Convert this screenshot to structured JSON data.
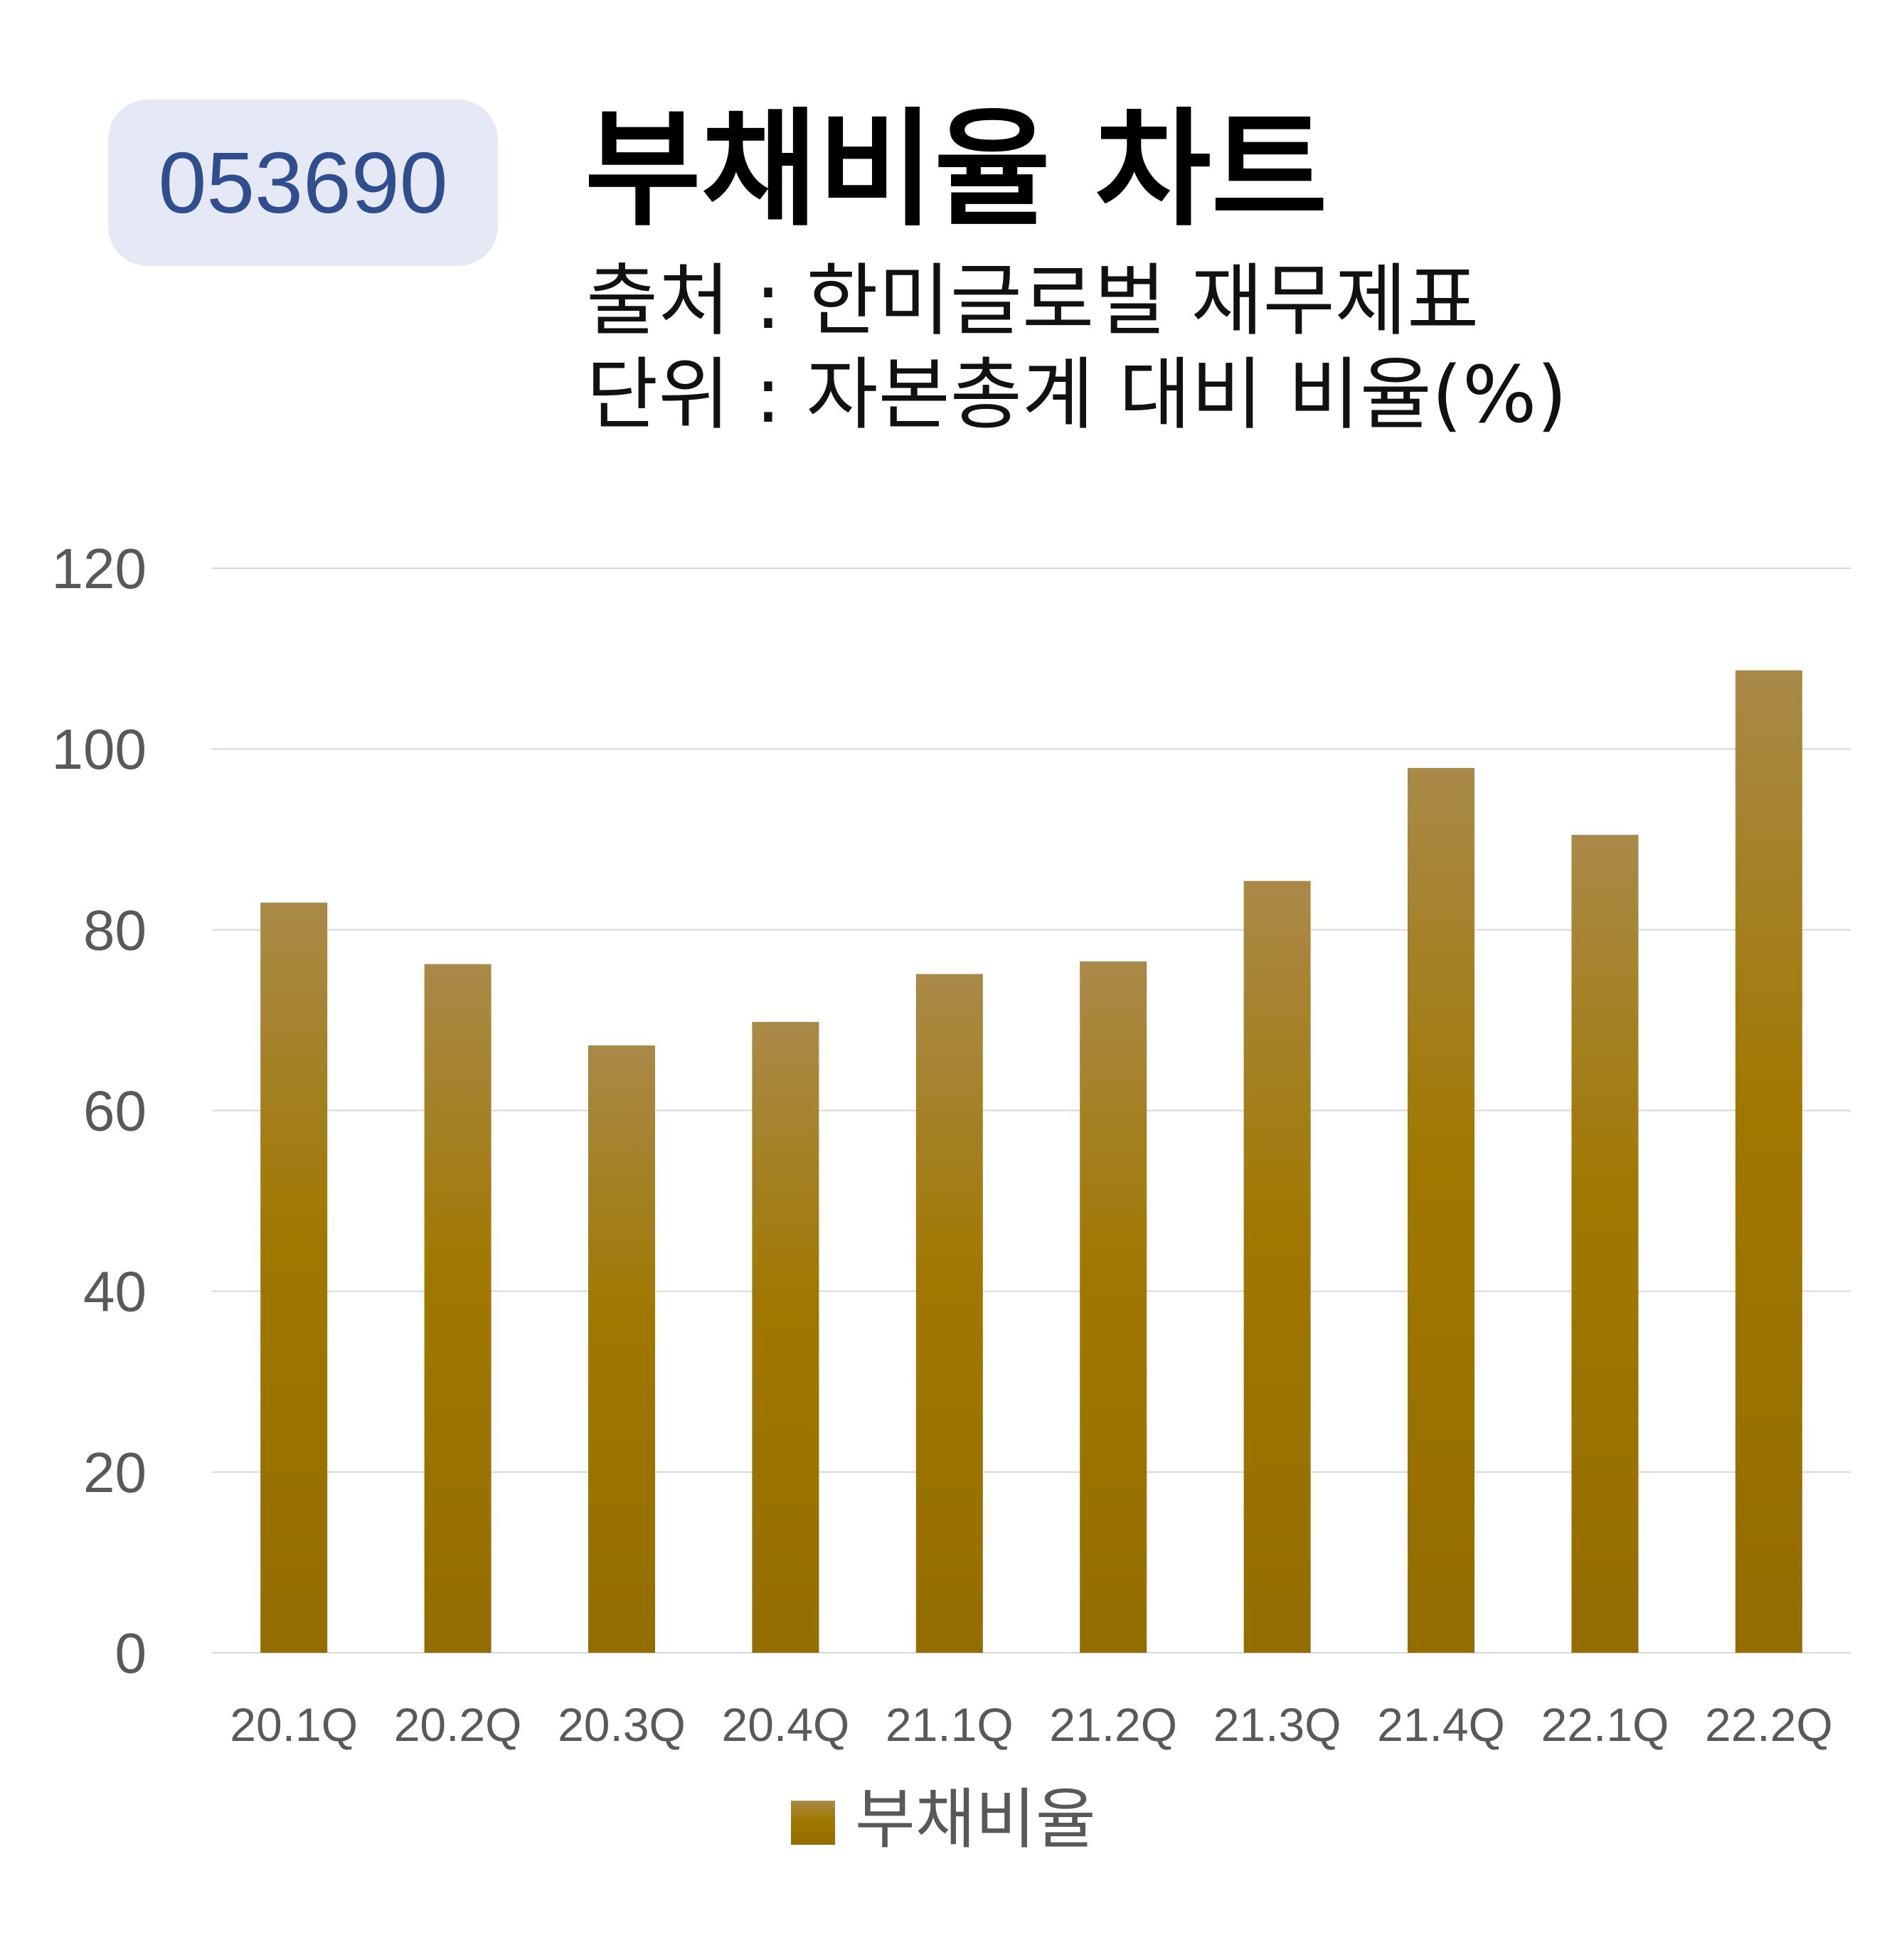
{
  "header": {
    "stock_code": "053690",
    "title": "부채비율 차트",
    "source": "출처 : 한미글로벌 재무제표",
    "unit": "단위 : 자본총계 대비 비율(%)"
  },
  "colors": {
    "bar_top": "#a98948",
    "bar_bottom": "#936d00",
    "bar_mid": "#a07800",
    "grid": "#d9d9d9",
    "tick_text": "#595959",
    "badge_bg": "#e4e9f5",
    "badge_text": "#2f4d8f"
  },
  "chart_data": {
    "type": "bar",
    "categories": [
      "20.1Q",
      "20.2Q",
      "20.3Q",
      "20.4Q",
      "21.1Q",
      "21.2Q",
      "21.3Q",
      "21.4Q",
      "22.1Q",
      "22.2Q"
    ],
    "series": [
      {
        "name": "부채비율",
        "values": [
          83.0,
          76.2,
          67.2,
          69.8,
          75.1,
          76.5,
          85.4,
          97.9,
          90.5,
          108.7
        ]
      }
    ],
    "ylim": [
      0,
      120
    ],
    "yticks": [
      0,
      20,
      40,
      60,
      80,
      100,
      120
    ],
    "grid": true,
    "legend_position": "bottom"
  }
}
